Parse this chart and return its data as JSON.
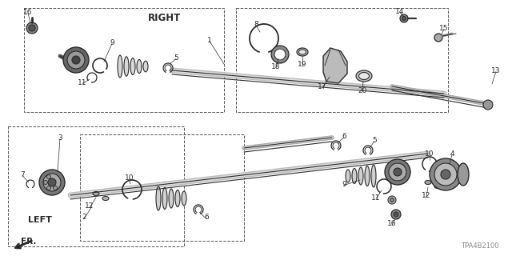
{
  "background_color": "#ffffff",
  "part_number_label": "TPA4B2100",
  "right_label": "RIGHT",
  "left_label": "LEFT",
  "fr_label": "FR.",
  "fig_width": 6.4,
  "fig_height": 3.2,
  "dpi": 100,
  "line_color": "#2a2a2a",
  "shaft_color": "#3a3a3a",
  "gray_fill": "#888888",
  "dark_fill": "#444444",
  "box_color": "#555555",
  "label_color": "#1a1a1a"
}
